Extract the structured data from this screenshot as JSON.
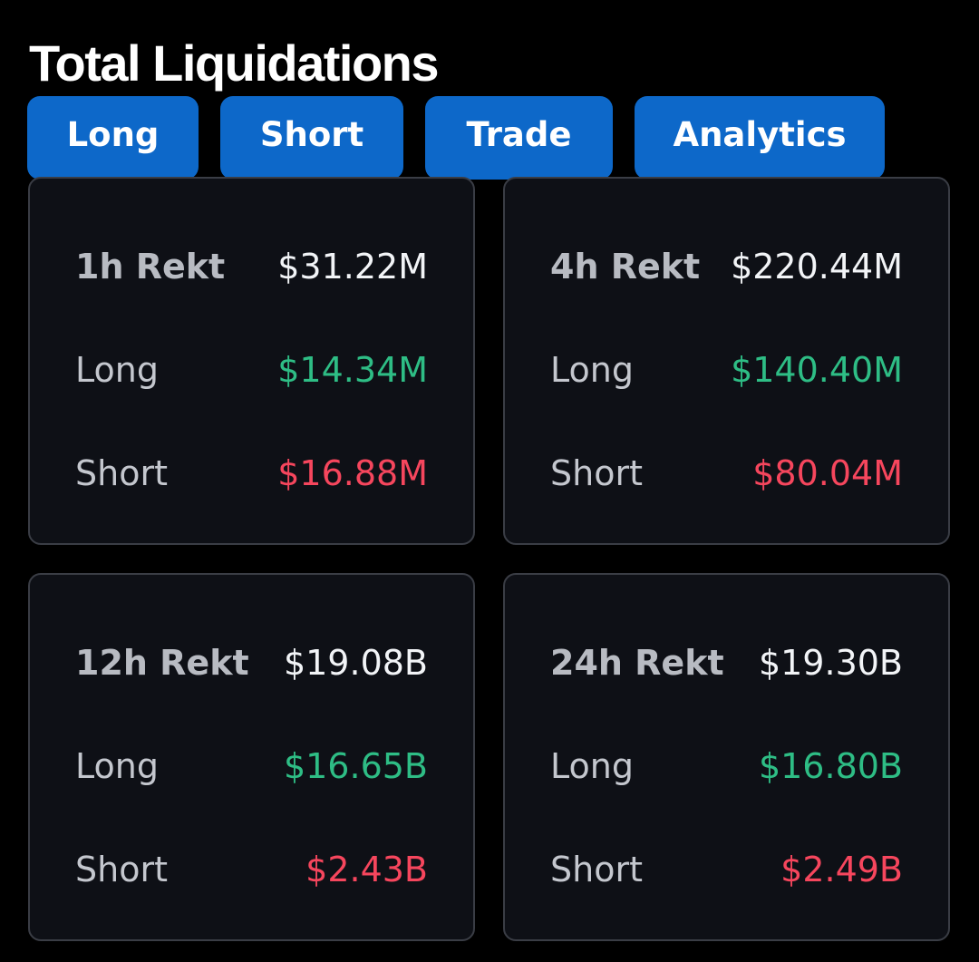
{
  "header": {
    "title": "Total Liquidations"
  },
  "tabs": [
    {
      "label": "Long"
    },
    {
      "label": "Short"
    },
    {
      "label": "Trade"
    },
    {
      "label": "Analytics"
    }
  ],
  "cards": [
    {
      "period_label": "1h Rekt",
      "total": "$31.22M",
      "long_label": "Long",
      "long_value": "$14.34M",
      "short_label": "Short",
      "short_value": "$16.88M"
    },
    {
      "period_label": "4h Rekt",
      "total": "$220.44M",
      "long_label": "Long",
      "long_value": "$140.40M",
      "short_label": "Short",
      "short_value": "$80.04M"
    },
    {
      "period_label": "12h Rekt",
      "total": "$19.08B",
      "long_label": "Long",
      "long_value": "$16.65B",
      "short_label": "Short",
      "short_value": "$2.43B"
    },
    {
      "period_label": "24h Rekt",
      "total": "$19.30B",
      "long_label": "Long",
      "long_value": "$16.80B",
      "short_label": "Short",
      "short_value": "$2.49B"
    }
  ],
  "colors": {
    "background": "#000000",
    "card_background": "#0E1016",
    "card_border": "#3A3D45",
    "tab_background": "#0D68C9",
    "long_green": "#2EBD85",
    "short_red": "#F6465D",
    "total_white": "#F2F4F7",
    "label_gray": "#C4C7CE"
  }
}
